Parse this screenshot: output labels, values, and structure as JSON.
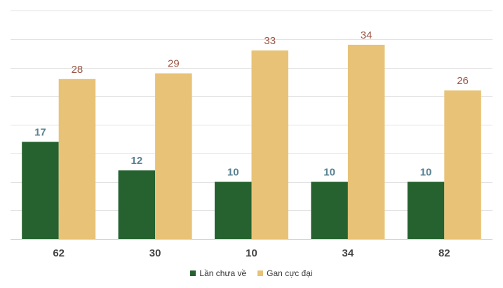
{
  "chart_data": {
    "type": "bar",
    "categories": [
      "62",
      "30",
      "10",
      "34",
      "82"
    ],
    "series": [
      {
        "name": "Lần chưa về",
        "values": [
          17,
          12,
          10,
          10,
          10
        ],
        "color": "#25622f",
        "label_color": "#5a8292"
      },
      {
        "name": "Gan cực đại",
        "values": [
          28,
          29,
          33,
          34,
          26
        ],
        "color": "#e8c276",
        "label_color": "#9b5545"
      }
    ],
    "ylim": [
      0,
      40
    ],
    "grid": true,
    "legend_position": "bottom"
  }
}
